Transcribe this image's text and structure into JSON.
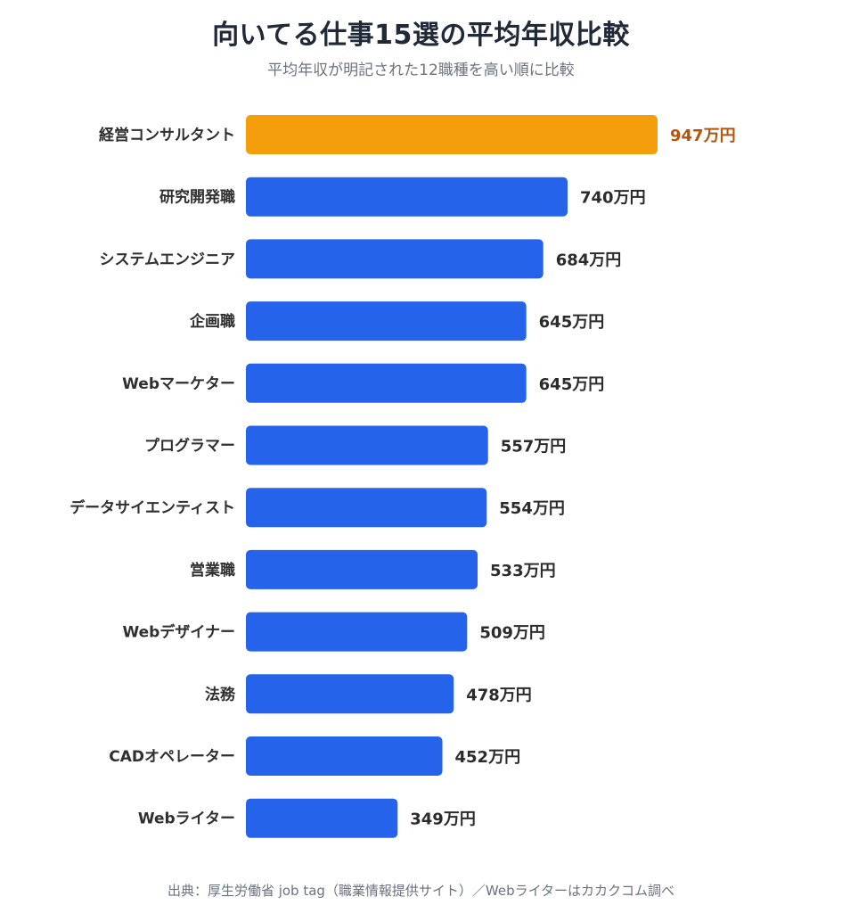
{
  "title": "向いてる仕事15選の平均年収比較",
  "subtitle": "平均年収が明記された12職種を高い順に比較",
  "source": "出典：厚生労働省 job tag（職業情報提供サイト）／Webライターはカカクコム調べ",
  "colors": {
    "highlight": "#f59e0b",
    "bar": "#2563eb",
    "highlight_label": "#b45309",
    "label": "#2b2b2b"
  },
  "chart_data": {
    "type": "bar",
    "orientation": "horizontal",
    "unit": "万円",
    "categories": [
      "経営コンサルタント",
      "研究開発職",
      "システムエンジニア",
      "企画職",
      "Webマーケター",
      "プログラマー",
      "データサイエンティスト",
      "営業職",
      "Webデザイナー",
      "法務",
      "CADオペレーター",
      "Webライター"
    ],
    "values": [
      947,
      740,
      684,
      645,
      645,
      557,
      554,
      533,
      509,
      478,
      452,
      349
    ],
    "value_labels": [
      "947万円",
      "740万円",
      "684万円",
      "645万円",
      "645万円",
      "557万円",
      "554万円",
      "533万円",
      "509万円",
      "478万円",
      "452万円",
      "349万円"
    ],
    "highlight_index": 0,
    "grid": false,
    "legend": "none",
    "xlim": [
      0,
      947
    ]
  }
}
